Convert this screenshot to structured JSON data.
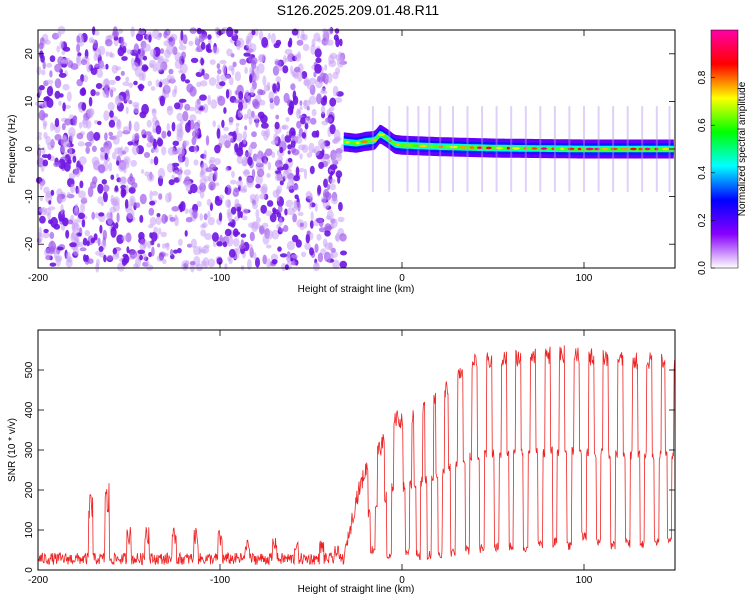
{
  "figure_title": "S126.2025.209.01.48.R11",
  "chart_data": [
    {
      "type": "heatmap",
      "name": "spectrogram",
      "xlabel": "Height of straight line (km)",
      "ylabel": "Frequency (Hz)",
      "xlim": [
        -200,
        150
      ],
      "ylim": [
        -25,
        25
      ],
      "xticks": [
        -200,
        -100,
        0,
        100
      ],
      "yticks": [
        -20,
        -10,
        0,
        10,
        20
      ],
      "colorbar": {
        "label": "Normalized spectral amplitude",
        "range": [
          0,
          1
        ],
        "ticks": [
          0.0,
          0.2,
          0.4,
          0.6,
          0.8
        ],
        "colormap": [
          "#ffffff",
          "#8800ff",
          "#0000ff",
          "#00ffff",
          "#00ff00",
          "#ffff00",
          "#ff0000",
          "#ff00aa"
        ]
      },
      "regions": [
        {
          "x": [
            -200,
            -32
          ],
          "description": "broadband noise, amplitude ~0.0-0.2 across all frequencies"
        },
        {
          "x": [
            -32,
            150
          ],
          "description": "narrow carrier line near 0 Hz, amplitude ~0.3-1.0"
        }
      ],
      "carrier_offset_hz": [
        {
          "x": -32,
          "y": 1.5
        },
        {
          "x": -25,
          "y": 1.2
        },
        {
          "x": -20,
          "y": 1.6
        },
        {
          "x": -15,
          "y": 1.8
        },
        {
          "GROUP_NOTE_REMOVED": null,
          "x": -12,
          "y": 3.2
        },
        {
          "x": -8,
          "y": 2.2
        },
        {
          "x": -4,
          "y": 1.0
        },
        {
          "x": 0,
          "y": 0.8
        },
        {
          "x": 20,
          "y": 0.5
        },
        {
          "x": 50,
          "y": 0.2
        },
        {
          "x": 100,
          "y": 0.0
        },
        {
          "x": 150,
          "y": 0.0
        }
      ]
    },
    {
      "type": "line",
      "name": "snr",
      "xlabel": "Height of straight line (km)",
      "ylabel": "SNR (10 * v/v)",
      "xlim": [
        -200,
        150
      ],
      "ylim": [
        0,
        600
      ],
      "xticks": [
        -200,
        -100,
        0,
        100
      ],
      "yticks": [
        0,
        100,
        200,
        300,
        400,
        500
      ],
      "color": "#ee2222",
      "baseline": [
        {
          "x": -200,
          "y": 25
        },
        {
          "x": -100,
          "y": 25
        },
        {
          "x": -32,
          "y": 25
        },
        {
          "x": -25,
          "y": 180
        },
        {
          "x": -20,
          "y": 250
        },
        {
          "x": -10,
          "y": 320
        },
        {
          "x": -5,
          "y": 380
        },
        {
          "x": 0,
          "y": 375
        },
        {
          "x": 10,
          "y": 400
        },
        {
          "x": 20,
          "y": 430
        },
        {
          "x": 30,
          "y": 490
        },
        {
          "x": 40,
          "y": 520
        },
        {
          "x": 60,
          "y": 530
        },
        {
          "x": 90,
          "y": 540
        },
        {
          "x": 120,
          "y": 525
        },
        {
          "x": 150,
          "y": 520
        }
      ],
      "spikes": [
        {
          "x": -171,
          "y": 195
        },
        {
          "x": -162,
          "y": 225
        },
        {
          "x": -150,
          "y": 110
        },
        {
          "x": -140,
          "y": 120
        },
        {
          "x": -125,
          "y": 110
        },
        {
          "x": -113,
          "y": 105
        },
        {
          "x": -100,
          "y": 100
        },
        {
          "x": -85,
          "y": 75
        },
        {
          "x": -70,
          "y": 90
        },
        {
          "x": -58,
          "y": 70
        },
        {
          "x": -44,
          "y": 75
        },
        {
          "x": -36,
          "y": 60
        }
      ],
      "dips": [
        {
          "x": -16,
          "y": 40
        },
        {
          "x": -7,
          "y": 20
        },
        {
          "x": 3,
          "y": 30
        },
        {
          "x": 9,
          "y": 25
        },
        {
          "x": 15,
          "y": 25
        },
        {
          "x": 21,
          "y": 30
        },
        {
          "x": 28,
          "y": 30
        },
        {
          "x": 36,
          "y": 35
        },
        {
          "x": 44,
          "y": 40
        },
        {
          "x": 52,
          "y": 45
        },
        {
          "x": 60,
          "y": 45
        },
        {
          "x": 68,
          "y": 45
        },
        {
          "x": 76,
          "y": 50
        },
        {
          "x": 84,
          "y": 55
        },
        {
          "x": 92,
          "y": 50
        },
        {
          "x": 100,
          "y": 70
        },
        {
          "x": 108,
          "y": 60
        },
        {
          "x": 116,
          "y": 50
        },
        {
          "x": 124,
          "y": 55
        },
        {
          "x": 132,
          "y": 50
        },
        {
          "x": 140,
          "y": 60
        },
        {
          "x": 147,
          "y": 60
        }
      ]
    }
  ]
}
